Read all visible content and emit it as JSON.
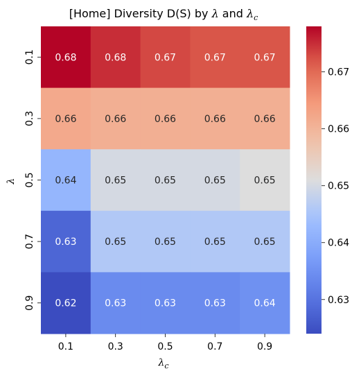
{
  "chart_data": {
    "type": "heatmap",
    "title": "[Home] Diversity D(S) by  λ and λ_c",
    "title_plain": "[Home] Diversity D(S) by",
    "xlabel": "λ_c",
    "ylabel": "λ",
    "x_categories": [
      "0.1",
      "0.3",
      "0.5",
      "0.7",
      "0.9"
    ],
    "y_categories": [
      "0.1",
      "0.3",
      "0.5",
      "0.7",
      "0.9"
    ],
    "values": [
      [
        0.678,
        0.675,
        0.673,
        0.672,
        0.672
      ],
      [
        0.662,
        0.661,
        0.661,
        0.661,
        0.661
      ],
      [
        0.642,
        0.65,
        0.65,
        0.65,
        0.651
      ],
      [
        0.628,
        0.646,
        0.646,
        0.646,
        0.646
      ],
      [
        0.624,
        0.634,
        0.634,
        0.634,
        0.635
      ]
    ],
    "cell_labels": [
      [
        "0.68",
        "0.68",
        "0.67",
        "0.67",
        "0.67"
      ],
      [
        "0.66",
        "0.66",
        "0.66",
        "0.66",
        "0.66"
      ],
      [
        "0.64",
        "0.65",
        "0.65",
        "0.65",
        "0.65"
      ],
      [
        "0.63",
        "0.65",
        "0.65",
        "0.65",
        "0.65"
      ],
      [
        "0.62",
        "0.63",
        "0.63",
        "0.63",
        "0.64"
      ]
    ],
    "colormap": "coolwarm",
    "vmin": 0.624,
    "vmax": 0.678,
    "colorbar_ticks": [
      "0.63",
      "0.64",
      "0.65",
      "0.66",
      "0.67"
    ],
    "colorbar_tick_values": [
      0.63,
      0.64,
      0.65,
      0.66,
      0.67
    ],
    "legend_position": "right"
  }
}
